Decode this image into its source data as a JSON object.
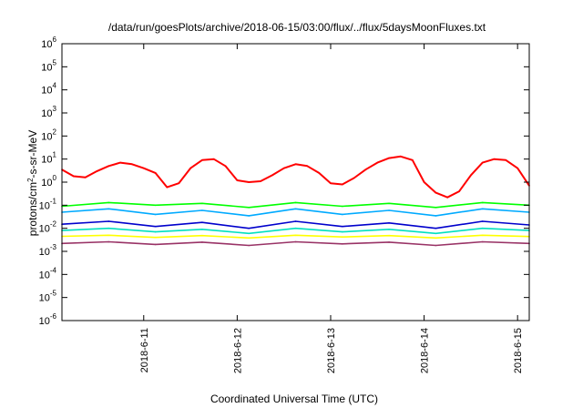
{
  "chart_data": {
    "type": "line",
    "title": "/data/run/goesPlots/archive/2018-06-15/03:00/flux/../flux/5daysMoonFluxes.txt",
    "xlabel": "Coordinated Universal Time (UTC)",
    "ylabel_prefix": "protons/cm",
    "ylabel_sup": "2",
    "ylabel_suffix": "-s-sr-MeV",
    "y_scale": "log",
    "ylim": [
      1e-06,
      1000000.0
    ],
    "y_ticks": [
      {
        "base": "10",
        "exp": "-6",
        "value": 1e-06
      },
      {
        "base": "10",
        "exp": "-5",
        "value": 1e-05
      },
      {
        "base": "10",
        "exp": "-4",
        "value": 0.0001
      },
      {
        "base": "10",
        "exp": "-3",
        "value": 0.001
      },
      {
        "base": "10",
        "exp": "-2",
        "value": 0.01
      },
      {
        "base": "10",
        "exp": "-1",
        "value": 0.1
      },
      {
        "base": "10",
        "exp": "0",
        "value": 1
      },
      {
        "base": "10",
        "exp": "1",
        "value": 10
      },
      {
        "base": "10",
        "exp": "2",
        "value": 100
      },
      {
        "base": "10",
        "exp": "3",
        "value": 1000
      },
      {
        "base": "10",
        "exp": "4",
        "value": 10000
      },
      {
        "base": "10",
        "exp": "5",
        "value": 100000
      },
      {
        "base": "10",
        "exp": "6",
        "value": 1000000
      }
    ],
    "x_range": [
      "2018-06-10 03:00",
      "2018-06-15 03:00"
    ],
    "x_ticks": [
      {
        "label": "2018-6-11",
        "value": "2018-06-11 00:00"
      },
      {
        "label": "2018-6-12",
        "value": "2018-06-12 00:00"
      },
      {
        "label": "2018-6-13",
        "value": "2018-06-13 00:00"
      },
      {
        "label": "2018-6-14",
        "value": "2018-06-14 00:00"
      },
      {
        "label": "2018-6-15",
        "value": "2018-06-15 00:00"
      }
    ],
    "grid": false,
    "legend": "none",
    "series": [
      {
        "color": "#ff0000",
        "x": [
          "2018-06-10 03:00",
          "2018-06-10 06:00",
          "2018-06-10 09:00",
          "2018-06-10 12:00",
          "2018-06-10 15:00",
          "2018-06-10 18:00",
          "2018-06-10 21:00",
          "2018-06-11 00:00",
          "2018-06-11 03:00",
          "2018-06-11 06:00",
          "2018-06-11 09:00",
          "2018-06-11 12:00",
          "2018-06-11 15:00",
          "2018-06-11 18:00",
          "2018-06-11 21:00",
          "2018-06-12 00:00",
          "2018-06-12 03:00",
          "2018-06-12 06:00",
          "2018-06-12 09:00",
          "2018-06-12 12:00",
          "2018-06-12 15:00",
          "2018-06-12 18:00",
          "2018-06-12 21:00",
          "2018-06-13 00:00",
          "2018-06-13 03:00",
          "2018-06-13 06:00",
          "2018-06-13 09:00",
          "2018-06-13 12:00",
          "2018-06-13 15:00",
          "2018-06-13 18:00",
          "2018-06-13 21:00",
          "2018-06-14 00:00",
          "2018-06-14 03:00",
          "2018-06-14 06:00",
          "2018-06-14 09:00",
          "2018-06-14 12:00",
          "2018-06-14 15:00",
          "2018-06-14 18:00",
          "2018-06-14 21:00",
          "2018-06-15 00:00",
          "2018-06-15 03:00"
        ],
        "y": [
          3.5,
          1.8,
          1.6,
          3,
          5,
          7,
          6,
          4,
          2.5,
          0.6,
          0.9,
          4,
          9,
          10,
          5,
          1.2,
          1.0,
          1.1,
          2,
          4,
          6,
          5,
          2.5,
          0.9,
          0.8,
          1.5,
          3.5,
          7,
          11,
          13,
          9,
          1.0,
          0.35,
          0.22,
          0.4,
          2,
          7,
          10,
          9,
          4,
          0.7
        ]
      },
      {
        "color": "#00ff00",
        "x": [
          "2018-06-10 03:00",
          "2018-06-10 15:00",
          "2018-06-11 03:00",
          "2018-06-11 15:00",
          "2018-06-12 03:00",
          "2018-06-12 15:00",
          "2018-06-13 03:00",
          "2018-06-13 15:00",
          "2018-06-14 03:00",
          "2018-06-14 15:00",
          "2018-06-15 03:00"
        ],
        "y": [
          0.09,
          0.13,
          0.1,
          0.12,
          0.08,
          0.13,
          0.09,
          0.12,
          0.08,
          0.13,
          0.1
        ]
      },
      {
        "color": "#00aaff",
        "x": [
          "2018-06-10 03:00",
          "2018-06-10 15:00",
          "2018-06-11 03:00",
          "2018-06-11 15:00",
          "2018-06-12 03:00",
          "2018-06-12 15:00",
          "2018-06-13 03:00",
          "2018-06-13 15:00",
          "2018-06-14 03:00",
          "2018-06-14 15:00",
          "2018-06-15 03:00"
        ],
        "y": [
          0.05,
          0.07,
          0.04,
          0.06,
          0.035,
          0.07,
          0.04,
          0.06,
          0.035,
          0.07,
          0.05
        ]
      },
      {
        "color": "#0000cc",
        "x": [
          "2018-06-10 03:00",
          "2018-06-10 15:00",
          "2018-06-11 03:00",
          "2018-06-11 15:00",
          "2018-06-12 03:00",
          "2018-06-12 15:00",
          "2018-06-13 03:00",
          "2018-06-13 15:00",
          "2018-06-14 03:00",
          "2018-06-14 15:00",
          "2018-06-15 03:00"
        ],
        "y": [
          0.015,
          0.02,
          0.012,
          0.018,
          0.01,
          0.02,
          0.012,
          0.017,
          0.01,
          0.02,
          0.014
        ]
      },
      {
        "color": "#00e0c0",
        "x": [
          "2018-06-10 03:00",
          "2018-06-10 15:00",
          "2018-06-11 03:00",
          "2018-06-11 15:00",
          "2018-06-12 03:00",
          "2018-06-12 15:00",
          "2018-06-13 03:00",
          "2018-06-13 15:00",
          "2018-06-14 03:00",
          "2018-06-14 15:00",
          "2018-06-15 03:00"
        ],
        "y": [
          0.008,
          0.01,
          0.007,
          0.009,
          0.006,
          0.01,
          0.007,
          0.009,
          0.006,
          0.01,
          0.008
        ]
      },
      {
        "color": "#ffff00",
        "x": [
          "2018-06-10 03:00",
          "2018-06-10 15:00",
          "2018-06-11 03:00",
          "2018-06-11 15:00",
          "2018-06-12 03:00",
          "2018-06-12 15:00",
          "2018-06-13 03:00",
          "2018-06-13 15:00",
          "2018-06-14 03:00",
          "2018-06-14 15:00",
          "2018-06-15 03:00"
        ],
        "y": [
          0.0045,
          0.005,
          0.004,
          0.0048,
          0.0038,
          0.005,
          0.0042,
          0.0048,
          0.0038,
          0.005,
          0.0044
        ]
      },
      {
        "color": "#993366",
        "x": [
          "2018-06-10 03:00",
          "2018-06-10 15:00",
          "2018-06-11 03:00",
          "2018-06-11 15:00",
          "2018-06-12 03:00",
          "2018-06-12 15:00",
          "2018-06-13 03:00",
          "2018-06-13 15:00",
          "2018-06-14 03:00",
          "2018-06-14 15:00",
          "2018-06-15 03:00"
        ],
        "y": [
          0.0022,
          0.0026,
          0.002,
          0.0025,
          0.0018,
          0.0026,
          0.0021,
          0.0025,
          0.0018,
          0.0026,
          0.0022
        ]
      }
    ]
  }
}
